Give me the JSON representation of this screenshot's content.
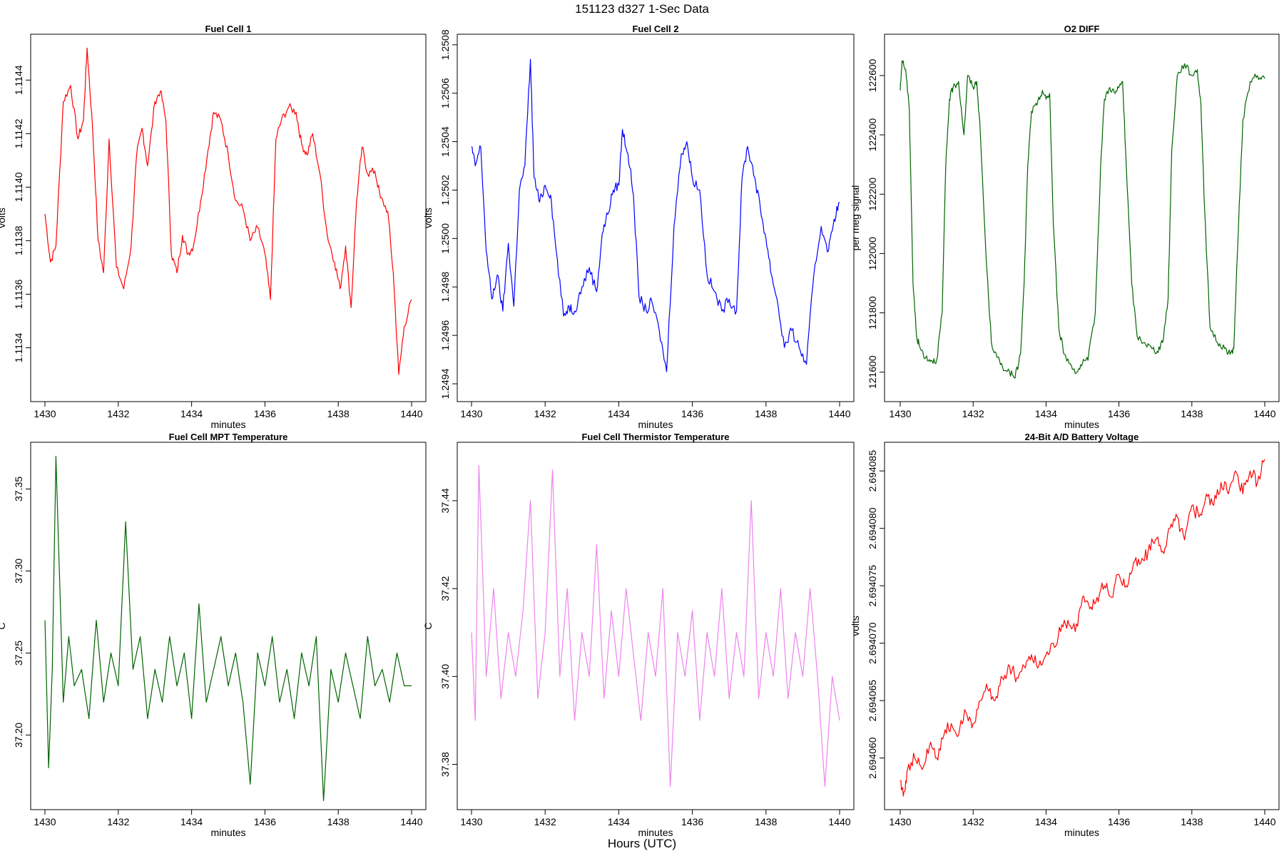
{
  "figure": {
    "title": "151123   d327   1-Sec Data",
    "footer_label": "Hours (UTC)"
  },
  "chart_data": [
    {
      "type": "line",
      "title": "Fuel Cell 1",
      "xlabel": "minutes",
      "ylabel": "volts",
      "color": "#ff0000",
      "xlim": [
        1430,
        1440
      ],
      "ylim": [
        1.11322,
        1.11455
      ],
      "x_ticks": [
        "1430",
        "1432",
        "1434",
        "1436",
        "1438",
        "1440"
      ],
      "y_ticks": [
        "1.1134",
        "1.1136",
        "1.1138",
        "1.1140",
        "1.1142",
        "1.1144"
      ],
      "series": [
        {
          "x": [
            1430,
            1430.15,
            1430.3,
            1430.5,
            1430.7,
            1430.9,
            1431.05,
            1431.15,
            1431.3,
            1431.45,
            1431.6,
            1431.75,
            1431.95,
            1432.15,
            1432.35,
            1432.5,
            1432.65,
            1432.8,
            1433,
            1433.15,
            1433.3,
            1433.45,
            1433.6,
            1433.75,
            1433.9,
            1434.05,
            1434.25,
            1434.45,
            1434.6,
            1434.8,
            1435,
            1435.2,
            1435.4,
            1435.6,
            1435.8,
            1436,
            1436.15,
            1436.3,
            1436.45,
            1436.65,
            1436.85,
            1437,
            1437.15,
            1437.3,
            1437.5,
            1437.7,
            1437.9,
            1438.05,
            1438.2,
            1438.35,
            1438.5,
            1438.65,
            1438.8,
            1439,
            1439.15,
            1439.35,
            1439.5,
            1439.65,
            1439.8,
            1440
          ],
          "y": [
            1.1139,
            1.11372,
            1.11378,
            1.11432,
            1.11438,
            1.11418,
            1.11425,
            1.11452,
            1.11422,
            1.1138,
            1.11368,
            1.11418,
            1.1137,
            1.11362,
            1.11378,
            1.11412,
            1.11422,
            1.11408,
            1.11432,
            1.11436,
            1.11425,
            1.11375,
            1.11368,
            1.11382,
            1.11375,
            1.11378,
            1.11395,
            1.11414,
            1.11428,
            1.11425,
            1.11412,
            1.11395,
            1.11392,
            1.1138,
            1.11385,
            1.11375,
            1.11358,
            1.11418,
            1.11425,
            1.1143,
            1.11428,
            1.11416,
            1.11412,
            1.1142,
            1.11405,
            1.11382,
            1.11372,
            1.11362,
            1.11378,
            1.11355,
            1.11395,
            1.11415,
            1.11405,
            1.11406,
            1.11396,
            1.11391,
            1.11368,
            1.1133,
            1.11348,
            1.11358
          ]
        }
      ]
    },
    {
      "type": "line",
      "title": "Fuel Cell 2",
      "xlabel": "minutes",
      "ylabel": "volts",
      "color": "#0000ff",
      "xlim": [
        1430,
        1440
      ],
      "ylim": [
        1.24935,
        1.25082
      ],
      "x_ticks": [
        "1430",
        "1432",
        "1434",
        "1436",
        "1438",
        "1440"
      ],
      "y_ticks": [
        "1.2494",
        "1.2496",
        "1.2498",
        "1.2500",
        "1.2502",
        "1.2504",
        "1.2506",
        "1.2508"
      ],
      "series": [
        {
          "x": [
            1430,
            1430.1,
            1430.25,
            1430.4,
            1430.55,
            1430.7,
            1430.85,
            1431,
            1431.15,
            1431.3,
            1431.45,
            1431.6,
            1431.7,
            1431.85,
            1432,
            1432.15,
            1432.3,
            1432.5,
            1432.65,
            1432.8,
            1433,
            1433.2,
            1433.4,
            1433.55,
            1433.7,
            1433.85,
            1434,
            1434.1,
            1434.25,
            1434.4,
            1434.55,
            1434.75,
            1434.9,
            1435.1,
            1435.3,
            1435.5,
            1435.7,
            1435.85,
            1436,
            1436.2,
            1436.4,
            1436.6,
            1436.8,
            1437,
            1437.2,
            1437.35,
            1437.5,
            1437.7,
            1437.85,
            1438,
            1438.15,
            1438.3,
            1438.5,
            1438.7,
            1438.9,
            1439.1,
            1439.3,
            1439.5,
            1439.7,
            1439.85,
            1440
          ],
          "y": [
            1.25038,
            1.2503,
            1.25038,
            1.24995,
            1.24975,
            1.24985,
            1.2497,
            1.24998,
            1.24972,
            1.2502,
            1.2503,
            1.25074,
            1.25025,
            1.25015,
            1.25022,
            1.25018,
            1.24995,
            1.24968,
            1.24972,
            1.2497,
            1.2498,
            1.24988,
            1.24978,
            1.25002,
            1.2501,
            1.2502,
            1.25022,
            1.25045,
            1.25035,
            1.25018,
            1.24976,
            1.2497,
            1.24974,
            1.24962,
            1.24945,
            1.25005,
            1.25035,
            1.2504,
            1.25025,
            1.2502,
            1.24985,
            1.24978,
            1.2497,
            1.24975,
            1.2497,
            1.25025,
            1.25038,
            1.25025,
            1.25012,
            1.25,
            1.24985,
            1.24975,
            1.24955,
            1.24962,
            1.24955,
            1.24948,
            1.24985,
            1.25005,
            1.24995,
            1.25008,
            1.25015
          ]
        }
      ]
    },
    {
      "type": "line",
      "title": "O2 DIFF",
      "xlabel": "minutes",
      "ylabel": "per meg signal",
      "color": "#006400",
      "xlim": [
        1430,
        1440
      ],
      "ylim": [
        121520,
        122720
      ],
      "x_ticks": [
        "1430",
        "1432",
        "1434",
        "1436",
        "1438",
        "1440"
      ],
      "y_ticks": [
        "121600",
        "121800",
        "122000",
        "122200",
        "122400",
        "122600"
      ],
      "series": [
        {
          "x": [
            1430,
            1430.05,
            1430.15,
            1430.25,
            1430.3,
            1430.35,
            1430.45,
            1430.55,
            1430.7,
            1430.85,
            1431,
            1431.15,
            1431.25,
            1431.35,
            1431.45,
            1431.6,
            1431.75,
            1431.85,
            1432,
            1432.1,
            1432.2,
            1432.35,
            1432.5,
            1432.65,
            1432.8,
            1433,
            1433.15,
            1433.3,
            1433.4,
            1433.5,
            1433.6,
            1433.75,
            1433.9,
            1434,
            1434.1,
            1434.2,
            1434.35,
            1434.5,
            1434.7,
            1434.85,
            1435,
            1435.15,
            1435.35,
            1435.5,
            1435.6,
            1435.75,
            1435.9,
            1436,
            1436.1,
            1436.2,
            1436.35,
            1436.5,
            1436.7,
            1436.9,
            1437.05,
            1437.2,
            1437.35,
            1437.45,
            1437.6,
            1437.8,
            1438,
            1438.15,
            1438.25,
            1438.35,
            1438.5,
            1438.7,
            1438.9,
            1439.05,
            1439.15,
            1439.25,
            1439.4,
            1439.6,
            1439.8,
            1440
          ],
          "y": [
            122550,
            122650,
            122620,
            122480,
            122200,
            121900,
            121720,
            121680,
            121650,
            121640,
            121640,
            121800,
            122300,
            122520,
            122560,
            122580,
            122400,
            122600,
            122560,
            122580,
            122400,
            122000,
            121700,
            121650,
            121620,
            121600,
            121580,
            121660,
            121900,
            122300,
            122480,
            122500,
            122550,
            122520,
            122540,
            122100,
            121750,
            121660,
            121620,
            121600,
            121630,
            121640,
            121800,
            122300,
            122520,
            122560,
            122540,
            122560,
            122580,
            122300,
            121900,
            121720,
            121700,
            121680,
            121670,
            121700,
            121850,
            122350,
            122600,
            122640,
            122600,
            122620,
            122500,
            122150,
            121750,
            121700,
            121680,
            121660,
            121680,
            122000,
            122450,
            122580,
            122600,
            122590
          ]
        }
      ]
    },
    {
      "type": "line",
      "title": "Fuel Cell MPT Temperature",
      "xlabel": "minutes",
      "ylabel": "C",
      "color": "#006400",
      "xlim": [
        1430,
        1440
      ],
      "ylim": [
        37.158,
        37.375
      ],
      "x_ticks": [
        "1430",
        "1432",
        "1434",
        "1436",
        "1438",
        "1440"
      ],
      "y_ticks": [
        "37.20",
        "37.25",
        "37.30",
        "37.35"
      ],
      "series": [
        {
          "x": [
            1430,
            1430.1,
            1430.2,
            1430.3,
            1430.5,
            1430.65,
            1430.8,
            1431,
            1431.2,
            1431.4,
            1431.6,
            1431.8,
            1432,
            1432.2,
            1432.4,
            1432.6,
            1432.8,
            1433,
            1433.2,
            1433.4,
            1433.6,
            1433.8,
            1434,
            1434.2,
            1434.4,
            1434.6,
            1434.8,
            1435,
            1435.2,
            1435.4,
            1435.6,
            1435.8,
            1436,
            1436.2,
            1436.4,
            1436.6,
            1436.8,
            1437,
            1437.2,
            1437.4,
            1437.6,
            1437.8,
            1438,
            1438.2,
            1438.4,
            1438.6,
            1438.8,
            1439,
            1439.2,
            1439.4,
            1439.6,
            1439.8,
            1440
          ],
          "y": [
            37.27,
            37.18,
            37.24,
            37.37,
            37.22,
            37.26,
            37.23,
            37.24,
            37.21,
            37.27,
            37.22,
            37.25,
            37.23,
            37.33,
            37.24,
            37.26,
            37.21,
            37.24,
            37.22,
            37.26,
            37.23,
            37.25,
            37.21,
            37.28,
            37.22,
            37.24,
            37.26,
            37.23,
            37.25,
            37.22,
            37.17,
            37.25,
            37.23,
            37.26,
            37.22,
            37.24,
            37.21,
            37.25,
            37.23,
            37.26,
            37.16,
            37.24,
            37.22,
            37.25,
            37.23,
            37.21,
            37.26,
            37.23,
            37.24,
            37.22,
            37.25,
            37.23,
            37.23
          ]
        }
      ]
    },
    {
      "type": "line",
      "title": "Fuel Cell Thermistor Temperature",
      "xlabel": "minutes",
      "ylabel": "C",
      "color": "#ee82ee",
      "xlim": [
        1430,
        1440
      ],
      "ylim": [
        37.371,
        37.452
      ],
      "x_ticks": [
        "1430",
        "1432",
        "1434",
        "1436",
        "1438",
        "1440"
      ],
      "y_ticks": [
        "37.38",
        "37.40",
        "37.42",
        "37.44"
      ],
      "series": [
        {
          "x": [
            1430,
            1430.1,
            1430.2,
            1430.4,
            1430.6,
            1430.8,
            1431,
            1431.2,
            1431.4,
            1431.6,
            1431.8,
            1432,
            1432.2,
            1432.4,
            1432.6,
            1432.8,
            1433,
            1433.2,
            1433.4,
            1433.6,
            1433.8,
            1434,
            1434.2,
            1434.4,
            1434.6,
            1434.8,
            1435,
            1435.2,
            1435.4,
            1435.6,
            1435.8,
            1436,
            1436.2,
            1436.4,
            1436.6,
            1436.8,
            1437,
            1437.2,
            1437.4,
            1437.6,
            1437.8,
            1438,
            1438.2,
            1438.4,
            1438.6,
            1438.8,
            1439,
            1439.2,
            1439.4,
            1439.6,
            1439.8,
            1440
          ],
          "y": [
            37.41,
            37.39,
            37.448,
            37.4,
            37.42,
            37.395,
            37.41,
            37.4,
            37.415,
            37.44,
            37.395,
            37.41,
            37.447,
            37.4,
            37.42,
            37.39,
            37.41,
            37.4,
            37.43,
            37.395,
            37.415,
            37.4,
            37.42,
            37.405,
            37.39,
            37.41,
            37.4,
            37.42,
            37.375,
            37.41,
            37.4,
            37.415,
            37.39,
            37.41,
            37.4,
            37.42,
            37.395,
            37.41,
            37.4,
            37.44,
            37.395,
            37.41,
            37.4,
            37.42,
            37.395,
            37.41,
            37.4,
            37.42,
            37.4,
            37.375,
            37.4,
            37.39
          ]
        }
      ]
    },
    {
      "type": "line",
      "title": "24-Bit A/D Battery Voltage",
      "xlabel": "minutes",
      "ylabel": "volts",
      "color": "#ff0000",
      "xlim": [
        1430,
        1440
      ],
      "ylim": [
        2.694056,
        2.694087
      ],
      "x_ticks": [
        "1430",
        "1432",
        "1434",
        "1436",
        "1438",
        "1440"
      ],
      "y_ticks": [
        "2.694060",
        "2.694065",
        "2.694070",
        "2.694075",
        "2.694080",
        "2.694085"
      ],
      "series": [
        {
          "x": [
            1430,
            1430.1,
            1430.2,
            1430.4,
            1430.6,
            1430.8,
            1431,
            1431.2,
            1431.4,
            1431.6,
            1431.8,
            1432,
            1432.2,
            1432.4,
            1432.6,
            1432.8,
            1433,
            1433.2,
            1433.4,
            1433.6,
            1433.8,
            1434,
            1434.2,
            1434.4,
            1434.6,
            1434.8,
            1435,
            1435.2,
            1435.4,
            1435.6,
            1435.8,
            1436,
            1436.2,
            1436.4,
            1436.6,
            1436.8,
            1437,
            1437.2,
            1437.4,
            1437.6,
            1437.8,
            1438,
            1438.2,
            1438.4,
            1438.6,
            1438.8,
            1439,
            1439.2,
            1439.4,
            1439.6,
            1439.8,
            1440
          ],
          "y": [
            2.694058,
            2.694057,
            2.694059,
            2.69406,
            2.694059,
            2.694061,
            2.69406,
            2.694062,
            2.694063,
            2.694062,
            2.694064,
            2.694063,
            2.694065,
            2.694066,
            2.694065,
            2.694067,
            2.694068,
            2.694067,
            2.694068,
            2.694069,
            2.694068,
            2.694069,
            2.69407,
            2.694071,
            2.694072,
            2.694071,
            2.694074,
            2.694073,
            2.694074,
            2.694075,
            2.694074,
            2.694076,
            2.694075,
            2.694077,
            2.694077,
            2.694078,
            2.694079,
            2.694078,
            2.69408,
            2.694081,
            2.694079,
            2.694082,
            2.694081,
            2.694083,
            2.694082,
            2.694084,
            2.694083,
            2.694085,
            2.694083,
            2.694085,
            2.694084,
            2.694086
          ]
        }
      ]
    }
  ]
}
